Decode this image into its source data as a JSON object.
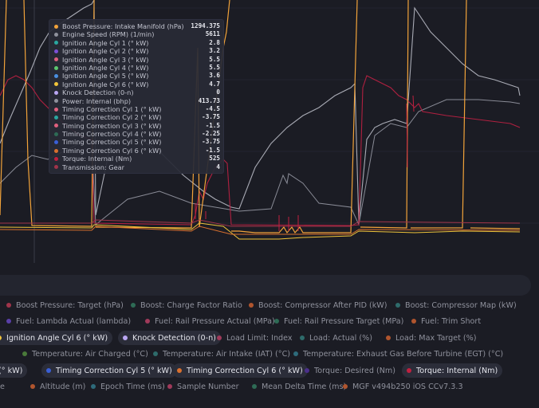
{
  "tooltip": {
    "rows": [
      {
        "label": "Boost Pressure: Intake Manifold (hPa)",
        "value": "1294.375",
        "color": "#f2a33a"
      },
      {
        "label": "Engine Speed (RPM) (1/min)",
        "value": "5611",
        "color": "#8f919c"
      },
      {
        "label": "Ignition Angle Cyl 1 (° kW)",
        "value": "2.8",
        "color": "#2aa7a0"
      },
      {
        "label": "Ignition Angle Cyl 2 (° kW)",
        "value": "3.2",
        "color": "#7b4fd6"
      },
      {
        "label": "Ignition Angle Cyl 3 (° kW)",
        "value": "5.5",
        "color": "#e0607e"
      },
      {
        "label": "Ignition Angle Cyl 4 (° kW)",
        "value": "5.5",
        "color": "#5cc76f"
      },
      {
        "label": "Ignition Angle Cyl 5 (° kW)",
        "value": "3.6",
        "color": "#4a8fe0"
      },
      {
        "label": "Ignition Angle Cyl 6 (° kW)",
        "value": "4.7",
        "color": "#f0c43a"
      },
      {
        "label": "Knock Detection (0-n)",
        "value": "0",
        "color": "#b9a6f2"
      },
      {
        "label": "Power: Internal (bhp)",
        "value": "413.73",
        "color": "#8f919c"
      },
      {
        "label": "Timing Correction Cyl 1 (° kW)",
        "value": "-4.5",
        "color": "#e0607e"
      },
      {
        "label": "Timing Correction Cyl 2 (° kW)",
        "value": "-3.75",
        "color": "#2aa7a0"
      },
      {
        "label": "Timing Correction Cyl 3 (° kW)",
        "value": "-1.5",
        "color": "#e0607e"
      },
      {
        "label": "Timing Correction Cyl 4 (° kW)",
        "value": "-2.25",
        "color": "#2e6b55"
      },
      {
        "label": "Timing Correction Cyl 5 (° kW)",
        "value": "-3.75",
        "color": "#3a5fd6"
      },
      {
        "label": "Timing Correction Cyl 6 (° kW)",
        "value": "-1.5",
        "color": "#d9702e"
      },
      {
        "label": "Torque: Internal (Nm)",
        "value": "525",
        "color": "#c02040"
      },
      {
        "label": "Transmission: Gear",
        "value": "4",
        "color": "#a0344a"
      }
    ]
  },
  "legend": {
    "rows": [
      [
        {
          "label": "Boost Pressure: Target (hPa)",
          "color": "#a0344a",
          "active": false
        },
        {
          "label": "Boost: Charge Factor Ratio",
          "color": "#2e6b55",
          "active": false
        },
        {
          "label": "Boost: Compressor After PID (kW)",
          "color": "#b0552e",
          "active": false
        },
        {
          "label": "Boost: Compressor Map (kW)",
          "color": "#2e6b6b",
          "active": false
        }
      ],
      [
        {
          "label": "Fuel: Lambda Actual (lambda)",
          "color": "#5a3fa8",
          "active": false
        },
        {
          "label": "Fuel: Rail Pressure Actual (MPa)",
          "color": "#a03a5a",
          "active": false
        },
        {
          "label": "Fuel: Rail Pressure Target (MPa)",
          "color": "#2e6b55",
          "active": false
        },
        {
          "label": "Fuel: Trim Short",
          "color": "#b0552e",
          "active": false
        }
      ],
      [
        {
          "label": "Ignition Angle Cyl 6 (° kW)",
          "color": "#f0c43a",
          "active": true
        },
        {
          "label": "Knock Detection (0-n)",
          "color": "#b9a6f2",
          "active": true
        },
        {
          "label": "Load Limit: Index",
          "color": "#a03a5a",
          "active": false
        },
        {
          "label": "Load: Actual (%)",
          "color": "#2e6b6b",
          "active": false
        },
        {
          "label": "Load: Max Target (%)",
          "color": "#b0552e",
          "active": false
        }
      ],
      [
        {
          "label": "Temperature: Air Charged (°C)",
          "color": "#4a7a3a",
          "active": false
        },
        {
          "label": "Temperature: Air Intake (IAT) (°C)",
          "color": "#2e6b6b",
          "active": false
        },
        {
          "label": "Temperature: Exhaust Gas Before Turbine (EGT) (°C)",
          "color": "#2e6b7b",
          "active": false
        }
      ],
      [
        {
          "label": "(° kW)",
          "color": "",
          "active": true
        },
        {
          "label": "Timing Correction Cyl 5 (° kW)",
          "color": "#3a5fd6",
          "active": true
        },
        {
          "label": "Timing Correction Cyl 6 (° kW)",
          "color": "#d9702e",
          "active": true
        },
        {
          "label": "Torque: Desired (Nm)",
          "color": "#4a2f8a",
          "active": false
        },
        {
          "label": "Torque: Internal (Nm)",
          "color": "#c02040",
          "active": true
        }
      ],
      [
        {
          "label": "e",
          "color": "",
          "active": false
        },
        {
          "label": "Altitude (m)",
          "color": "#b0552e",
          "active": false
        },
        {
          "label": "Epoch Time (ms)",
          "color": "#2e6b7b",
          "active": false
        },
        {
          "label": "Sample Number",
          "color": "#a03a5a",
          "active": false
        },
        {
          "label": "Mean Delta Time (ms)",
          "color": "#2e6b55",
          "active": false
        },
        {
          "label": "MGF v494b250 iOS CCv7.3.3",
          "color": "#b0552e",
          "active": false
        }
      ]
    ]
  }
}
